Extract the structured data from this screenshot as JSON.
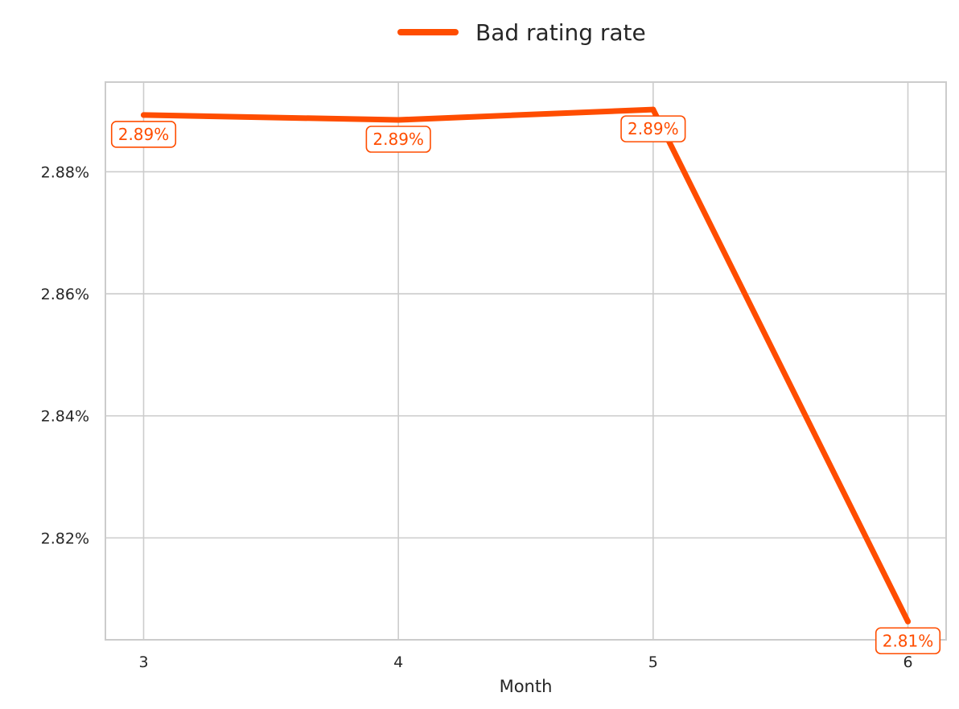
{
  "chart_data": {
    "type": "line",
    "xlabel": "Month",
    "ylabel": "",
    "x": [
      3,
      4,
      5,
      6
    ],
    "x_tick_labels": [
      "3",
      "4",
      "5",
      "6"
    ],
    "y_ticks": [
      2.82,
      2.84,
      2.86,
      2.88
    ],
    "y_tick_labels": [
      "2.82%",
      "2.84%",
      "2.86%",
      "2.88%"
    ],
    "ylim": [
      2.8033,
      2.8947
    ],
    "xlim": [
      2.85,
      6.15
    ],
    "grid": true,
    "legend_position": "top-center",
    "series": [
      {
        "name": "Bad rating rate",
        "color": "#ff4d00",
        "values": [
          2.8893,
          2.8885,
          2.8902,
          2.8063
        ],
        "data_labels": [
          "2.89%",
          "2.89%",
          "2.89%",
          "2.81%"
        ]
      }
    ]
  }
}
